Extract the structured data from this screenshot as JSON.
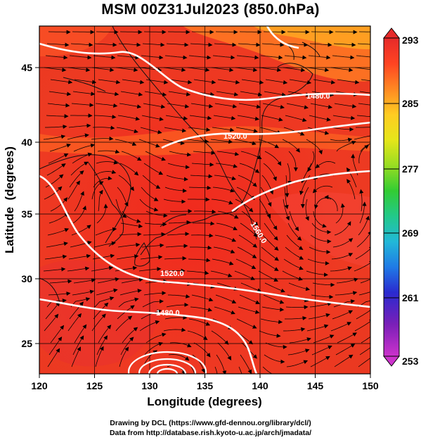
{
  "title": "MSM 00Z31Jul2023 (850.0hPa)",
  "xaxis": {
    "label": "Longitude (degrees)",
    "ticks": [
      "120",
      "125",
      "130",
      "135",
      "140",
      "145",
      "150"
    ],
    "range": [
      120,
      150
    ]
  },
  "yaxis": {
    "label": "Latitude  (degrees)",
    "ticks": [
      "25",
      "30",
      "35",
      "40",
      "45"
    ],
    "range": [
      22.4,
      47.6
    ]
  },
  "colorbar": {
    "ticks": [
      "293",
      "285",
      "277",
      "269",
      "261",
      "253"
    ],
    "range": [
      253,
      293
    ],
    "colors": [
      "#cc33cc",
      "#7a1fb8",
      "#2a2ad0",
      "#1f7ae6",
      "#22b8d8",
      "#22c98a",
      "#33cc33",
      "#99dd22",
      "#e6e61a",
      "#ffcc22",
      "#ff9922",
      "#ff6622",
      "#ff3322",
      "#e62a2a"
    ]
  },
  "contours": [
    {
      "label": "1480.0"
    },
    {
      "label": "1520.0"
    },
    {
      "label": "1560.0"
    },
    {
      "label": "1520.0"
    },
    {
      "label": "1480.0"
    }
  ],
  "footer": {
    "credit_line1": "Drawing by DCL (https://www.gfd-dennou.org/library/dcl/)",
    "credit_line2": "Data from http://database.rish.kyoto-u.ac.jp/arch/jmadata/"
  }
}
